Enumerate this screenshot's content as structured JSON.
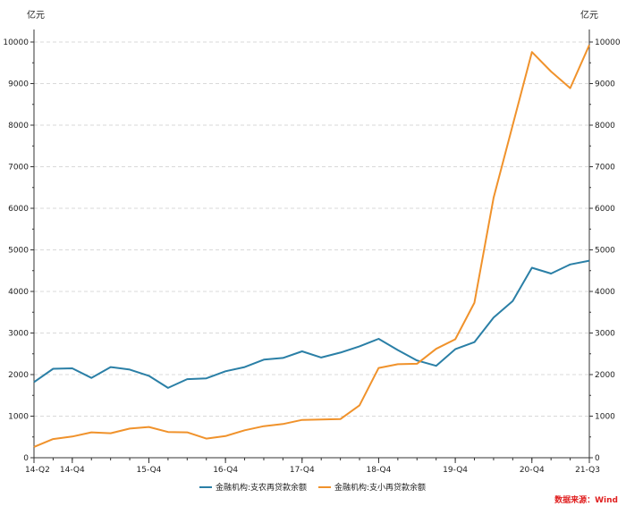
{
  "chart_data": {
    "type": "line",
    "y_unit_left": "亿元",
    "y_unit_right": "亿元",
    "ylim": [
      0,
      10000
    ],
    "y_ticks": [
      0,
      1000,
      2000,
      3000,
      4000,
      5000,
      6000,
      7000,
      8000,
      9000,
      10000
    ],
    "x_tick_labels": [
      "14-Q2",
      "14-Q4",
      "15-Q4",
      "16-Q4",
      "17-Q4",
      "18-Q4",
      "19-Q4",
      "20-Q4",
      "21-Q3"
    ],
    "x": [
      "14-Q2",
      "14-Q3",
      "14-Q4",
      "15-Q1",
      "15-Q2",
      "15-Q3",
      "15-Q4",
      "16-Q1",
      "16-Q2",
      "16-Q3",
      "16-Q4",
      "17-Q1",
      "17-Q2",
      "17-Q3",
      "17-Q4",
      "18-Q1",
      "18-Q2",
      "18-Q3",
      "18-Q4",
      "19-Q1",
      "19-Q2",
      "19-Q3",
      "19-Q4",
      "20-Q1",
      "20-Q2",
      "20-Q3",
      "20-Q4",
      "21-Q1",
      "21-Q2",
      "21-Q3"
    ],
    "series": [
      {
        "name": "金融机构:支农再贷款余额",
        "color": "#2a7fa6",
        "values": [
          1820,
          2140,
          2150,
          1920,
          2180,
          2120,
          1970,
          1680,
          1890,
          1910,
          2080,
          2180,
          2360,
          2400,
          2560,
          2410,
          2530,
          2680,
          2860,
          2590,
          2340,
          2210,
          2610,
          2780,
          3370,
          3770,
          4570,
          4430,
          4650,
          4740
        ]
      },
      {
        "name": "金融机构:支小再贷款余额",
        "color": "#f0922b",
        "values": [
          260,
          450,
          510,
          610,
          590,
          700,
          740,
          620,
          610,
          460,
          520,
          660,
          760,
          810,
          910,
          920,
          930,
          1260,
          2160,
          2250,
          2260,
          2620,
          2850,
          3730,
          6250,
          8000,
          9760,
          9290,
          8890,
          9930
        ]
      }
    ],
    "source": "数据来源：Wind",
    "source_color": "#e02020",
    "grid": true,
    "legend_position": "bottom"
  }
}
